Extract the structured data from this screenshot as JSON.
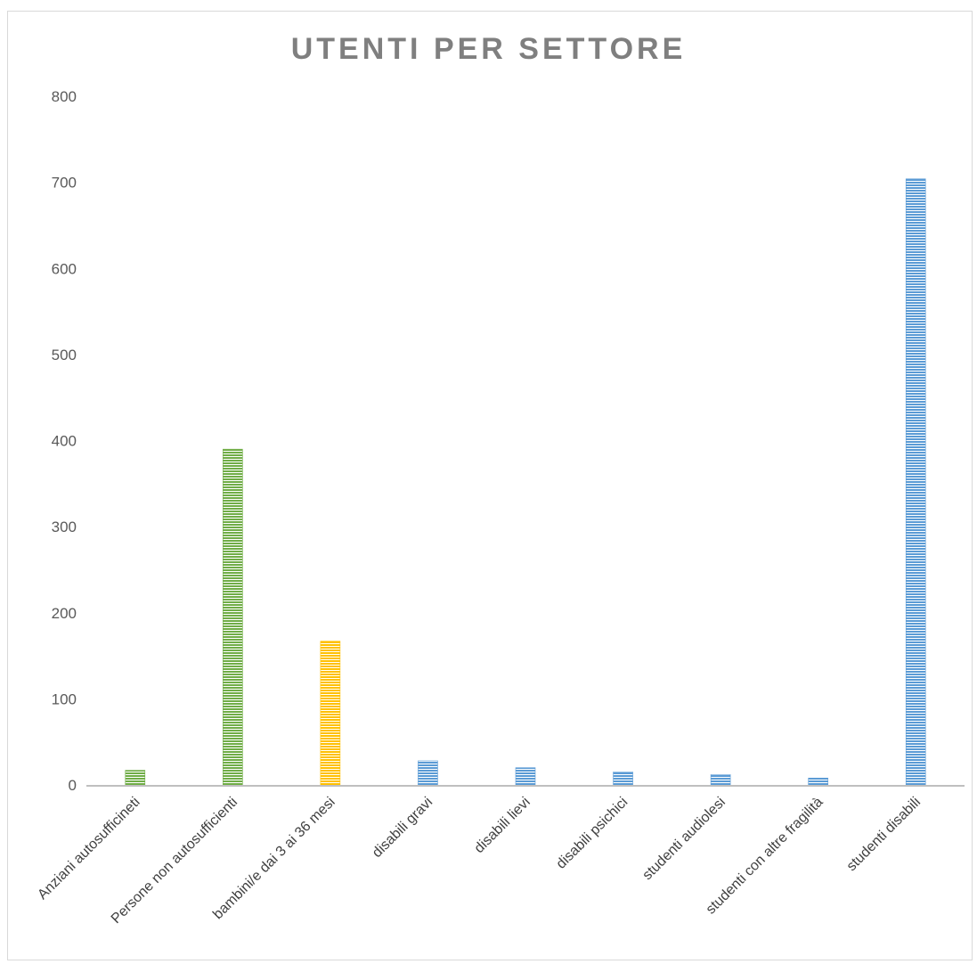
{
  "chart_data": {
    "type": "bar",
    "title": "UTENTI PER SETTORE",
    "xlabel": "",
    "ylabel": "",
    "ylim": [
      0,
      800
    ],
    "yticks": [
      "0",
      "100",
      "200",
      "300",
      "400",
      "500",
      "600",
      "700",
      "800"
    ],
    "grid": false,
    "legend": "none",
    "categories": [
      "Anziani autosufficineti",
      "Persone non autosufficienti",
      "bambini/e dai 3 ai 36 mesi",
      "disabili gravi",
      "disabili lievi",
      "disabili psichici",
      "studenti audiolesi",
      "studenti con altre fragilità",
      "studenti disabili"
    ],
    "values": [
      17,
      390,
      167,
      28,
      20,
      15,
      12,
      8,
      704
    ],
    "colors": [
      "#70ad47",
      "#70ad47",
      "#ffc000",
      "#5b9bd5",
      "#5b9bd5",
      "#5b9bd5",
      "#5b9bd5",
      "#5b9bd5",
      "#5b9bd5"
    ],
    "fill_pattern": "horizontal-stripes"
  }
}
